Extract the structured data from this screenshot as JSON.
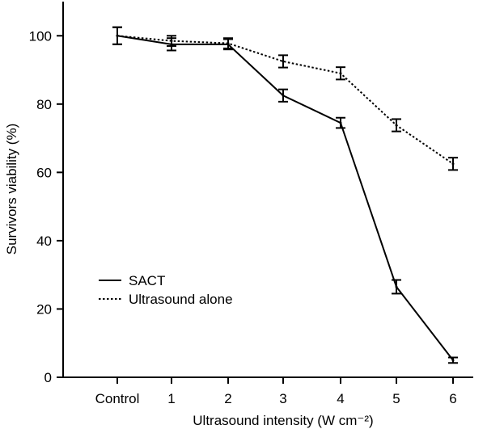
{
  "chart_data": {
    "type": "line",
    "categories": [
      "Control",
      "1",
      "2",
      "3",
      "4",
      "5",
      "6"
    ],
    "xlabel": "Ultrasound intensity (W cm⁻²)",
    "ylabel": "Survivors viability (%)",
    "ylim": [
      0,
      110
    ],
    "yticks": [
      0,
      20,
      40,
      60,
      80,
      100
    ],
    "grid": false,
    "legend_position": "bottom-left",
    "series": [
      {
        "name": "SACT",
        "style": "solid",
        "values": [
          100,
          97.5,
          97.5,
          82.5,
          74.5,
          26.5,
          5
        ],
        "errors": [
          2.5,
          1.8,
          1.5,
          1.8,
          1.5,
          2.0,
          0.8
        ]
      },
      {
        "name": "Ultrasound alone",
        "style": "dotted",
        "values": [
          100,
          98.5,
          97.8,
          92.5,
          89,
          73.8,
          62.5
        ],
        "errors": [
          2.5,
          1.5,
          1.5,
          1.8,
          1.8,
          1.8,
          1.8
        ]
      }
    ]
  }
}
